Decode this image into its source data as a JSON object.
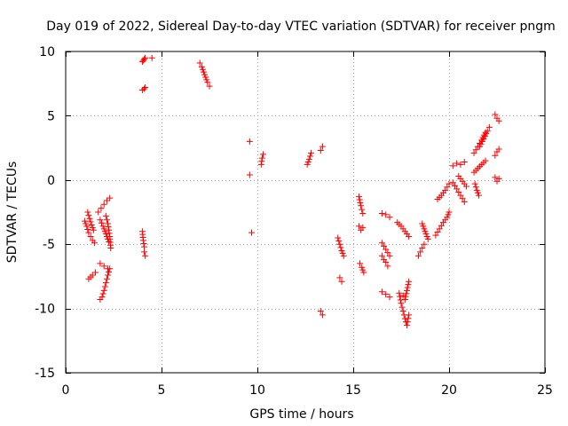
{
  "chart_data": {
    "type": "scatter",
    "title": "Day 019 of 2022, Sidereal Day-to-day VTEC variation (SDTVAR) for receiver pngm",
    "xlabel": "GPS time / hours",
    "ylabel": "SDTVAR / TECUs",
    "xlim": [
      0,
      25
    ],
    "ylim": [
      -15,
      10
    ],
    "xticks": [
      0,
      5,
      10,
      15,
      20,
      25
    ],
    "yticks": [
      -15,
      -10,
      -5,
      0,
      5,
      10
    ],
    "grid": true,
    "marker": "+",
    "color": "#ff0000",
    "segments": [
      {
        "x": [
          1.0,
          1.1,
          1.2,
          1.3,
          1.4,
          1.5
        ],
        "y": [
          -3.2,
          -3.6,
          -4.1,
          -4.4,
          -4.7,
          -4.9
        ]
      },
      {
        "x": [
          1.15,
          1.25,
          1.35,
          1.45
        ],
        "y": [
          -2.5,
          -3.0,
          -3.5,
          -3.9
        ]
      },
      {
        "x": [
          1.2,
          1.4,
          1.55
        ],
        "y": [
          -7.7,
          -7.4,
          -7.2
        ]
      },
      {
        "x": [
          1.7,
          1.85,
          2.0,
          2.15,
          2.3
        ],
        "y": [
          -2.5,
          -2.2,
          -1.9,
          -1.6,
          -1.4
        ]
      },
      {
        "x": [
          1.8,
          1.95,
          2.1,
          2.25
        ],
        "y": [
          -3.1,
          -3.6,
          -4.2,
          -4.8
        ]
      },
      {
        "x": [
          2.1,
          2.2,
          2.3,
          2.35
        ],
        "y": [
          -2.8,
          -3.4,
          -4.4,
          -5.3
        ]
      },
      {
        "x": [
          1.8,
          2.0,
          2.2
        ],
        "y": [
          -6.5,
          -6.7,
          -6.9
        ]
      },
      {
        "x": [
          1.8,
          1.9,
          2.0,
          2.1,
          2.2,
          2.3
        ],
        "y": [
          -9.3,
          -9.1,
          -8.6,
          -8.0,
          -7.4,
          -6.9
        ]
      },
      {
        "x": [
          4.0,
          4.05,
          4.1,
          4.15
        ],
        "y": [
          9.2,
          9.3,
          9.4,
          9.5
        ]
      },
      {
        "x": [
          4.5
        ],
        "y": [
          9.5
        ]
      },
      {
        "x": [
          4.0,
          4.1,
          4.15
        ],
        "y": [
          7.0,
          7.1,
          7.2
        ]
      },
      {
        "x": [
          4.0,
          4.05,
          4.1,
          4.1,
          4.15
        ],
        "y": [
          -4.0,
          -4.7,
          -5.2,
          -5.6,
          -5.9
        ]
      },
      {
        "x": [
          7.0,
          7.1,
          7.2,
          7.3,
          7.4,
          7.5
        ],
        "y": [
          9.1,
          8.8,
          8.4,
          8.0,
          7.6,
          7.3
        ]
      },
      {
        "x": [
          9.6
        ],
        "y": [
          3.0
        ]
      },
      {
        "x": [
          9.6
        ],
        "y": [
          0.4
        ]
      },
      {
        "x": [
          9.7
        ],
        "y": [
          -4.1
        ]
      },
      {
        "x": [
          10.2,
          10.25,
          10.3
        ],
        "y": [
          1.2,
          1.7,
          2.0
        ]
      },
      {
        "x": [
          12.6,
          12.7,
          12.8
        ],
        "y": [
          1.2,
          1.6,
          2.1
        ]
      },
      {
        "x": [
          13.3,
          13.4
        ],
        "y": [
          2.3,
          2.6
        ]
      },
      {
        "x": [
          13.3,
          13.4
        ],
        "y": [
          -10.2,
          -10.5
        ]
      },
      {
        "x": [
          14.2,
          14.3,
          14.4,
          14.5
        ],
        "y": [
          -4.5,
          -5.0,
          -5.5,
          -5.9
        ]
      },
      {
        "x": [
          14.3,
          14.4
        ],
        "y": [
          -7.6,
          -7.9
        ]
      },
      {
        "x": [
          15.3,
          15.4,
          15.5
        ],
        "y": [
          -1.3,
          -2.0,
          -2.6
        ]
      },
      {
        "x": [
          15.3,
          15.4,
          15.5
        ],
        "y": [
          -3.6,
          -3.9,
          -3.7
        ]
      },
      {
        "x": [
          15.35,
          15.45,
          15.55
        ],
        "y": [
          -6.5,
          -6.8,
          -7.2
        ]
      },
      {
        "x": [
          16.5,
          16.7,
          16.9
        ],
        "y": [
          -2.6,
          -2.7,
          -2.9
        ]
      },
      {
        "x": [
          16.5,
          16.7,
          16.9
        ],
        "y": [
          -4.9,
          -5.4,
          -5.9
        ]
      },
      {
        "x": [
          16.5,
          16.6,
          16.7,
          16.8
        ],
        "y": [
          -5.9,
          -6.2,
          -6.4,
          -6.7
        ]
      },
      {
        "x": [
          16.5,
          16.7,
          16.9
        ],
        "y": [
          -8.7,
          -8.9,
          -9.1
        ]
      },
      {
        "x": [
          17.3,
          17.5,
          17.7,
          17.9
        ],
        "y": [
          -3.3,
          -3.6,
          -4.0,
          -4.4
        ]
      },
      {
        "x": [
          17.4,
          17.5,
          17.6,
          17.7,
          17.8,
          17.9
        ],
        "y": [
          -8.8,
          -9.6,
          -10.2,
          -10.8,
          -11.3,
          -10.5
        ]
      },
      {
        "x": [
          17.6,
          17.7,
          17.8,
          17.9
        ],
        "y": [
          -9.0,
          -9.3,
          -8.6,
          -7.9
        ]
      },
      {
        "x": [
          18.4,
          18.5,
          18.6,
          18.7
        ],
        "y": [
          -5.9,
          -5.6,
          -5.3,
          -5.0
        ]
      },
      {
        "x": [
          18.6,
          18.7,
          18.8,
          18.9
        ],
        "y": [
          -3.4,
          -3.8,
          -4.2,
          -4.6
        ]
      },
      {
        "x": [
          19.3,
          19.5,
          19.7,
          19.9,
          20.0
        ],
        "y": [
          -4.3,
          -3.8,
          -3.3,
          -2.9,
          -2.5
        ]
      },
      {
        "x": [
          19.4,
          19.6,
          19.8,
          20.0
        ],
        "y": [
          -1.5,
          -1.2,
          -0.8,
          -0.3
        ]
      },
      {
        "x": [
          20.2,
          20.4,
          20.6,
          20.8
        ],
        "y": [
          1.1,
          1.3,
          1.2,
          1.4
        ]
      },
      {
        "x": [
          20.2,
          20.4,
          20.6,
          20.8
        ],
        "y": [
          -0.2,
          -0.7,
          -1.2,
          -1.7
        ]
      },
      {
        "x": [
          20.5,
          20.7,
          20.9
        ],
        "y": [
          0.3,
          -0.1,
          -0.5
        ]
      },
      {
        "x": [
          21.3,
          21.5,
          21.7,
          21.9
        ],
        "y": [
          2.1,
          2.6,
          3.1,
          3.7
        ]
      },
      {
        "x": [
          21.6,
          21.8,
          22.0,
          22.1
        ],
        "y": [
          2.6,
          3.2,
          3.8,
          4.1
        ]
      },
      {
        "x": [
          21.3,
          21.5,
          21.7,
          21.9
        ],
        "y": [
          0.6,
          0.9,
          1.2,
          1.5
        ]
      },
      {
        "x": [
          21.35,
          21.45,
          21.55
        ],
        "y": [
          -0.3,
          -0.8,
          -1.2
        ]
      },
      {
        "x": [
          22.4,
          22.5,
          22.6
        ],
        "y": [
          5.1,
          4.8,
          4.6
        ]
      },
      {
        "x": [
          22.4,
          22.5,
          22.6
        ],
        "y": [
          1.9,
          2.2,
          2.4
        ]
      },
      {
        "x": [
          22.4,
          22.5,
          22.6
        ],
        "y": [
          0.2,
          -0.1,
          0.1
        ]
      }
    ]
  }
}
